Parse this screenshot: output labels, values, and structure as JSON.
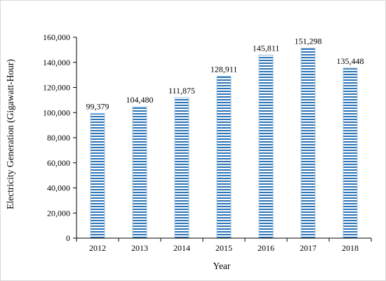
{
  "chart_data": {
    "type": "bar",
    "title": "",
    "xlabel": "Year",
    "ylabel": "Electricity Generation (Gigawatt-Hour)",
    "categories": [
      "2012",
      "2013",
      "2014",
      "2015",
      "2016",
      "2017",
      "2018"
    ],
    "values": [
      99379,
      104480,
      111875,
      128911,
      145811,
      151298,
      135448
    ],
    "data_labels": [
      "99,379",
      "104,480",
      "111,875",
      "128,911",
      "145,811",
      "151,298",
      "135,448"
    ],
    "ylim": [
      0,
      160000
    ],
    "yticks": [
      0,
      20000,
      40000,
      60000,
      80000,
      100000,
      120000,
      140000,
      160000
    ],
    "ytick_labels": [
      "0",
      "20,000",
      "40,000",
      "60,000",
      "80,000",
      "100,000",
      "120,000",
      "140,000",
      "160,000"
    ],
    "grid": false,
    "legend": false,
    "colors": {
      "bar_fill": "#ffffff",
      "bar_stripe": "#2e75b6",
      "bar_edge": "#9dc3e6",
      "axis": "#000000"
    },
    "bar_pattern": "horizontal-stripes"
  }
}
